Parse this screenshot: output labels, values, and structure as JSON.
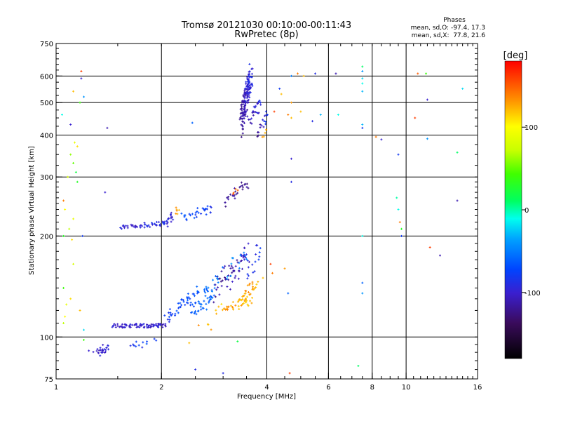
{
  "chart_data": {
    "type": "scatter",
    "title": "Tromsø 20121030 00:10:00-00:11:43",
    "subtitle": "RwPretec (8p)",
    "xlabel": "Frequency [MHz]",
    "ylabel": "Stationary phase Virtual Height [km]",
    "x_scale": "log",
    "y_scale": "log",
    "xlim": [
      1,
      16
    ],
    "ylim": [
      75,
      750
    ],
    "x_ticks": [
      1,
      2,
      4,
      6,
      8,
      10,
      16
    ],
    "x_tick_labels": [
      "1",
      "2",
      "4",
      "6",
      "8",
      "10",
      "16"
    ],
    "y_ticks": [
      75,
      100,
      200,
      300,
      400,
      500,
      600,
      750
    ],
    "y_tick_labels": [
      "75",
      "100",
      "200",
      "300",
      "400",
      "500",
      "600",
      "750"
    ],
    "grid": true,
    "annotation": {
      "heading": "Phases",
      "line1": "mean, sd,O: -97.4, 17.3",
      "line2": "mean, sd,X:  77.8, 21.6"
    },
    "colorbar": {
      "label": "[deg]",
      "range": [
        -180,
        180
      ],
      "ticks": [
        100,
        0,
        -100
      ],
      "tick_labels": [
        "100",
        "0",
        "-100"
      ]
    },
    "points": [
      [
        1.18,
        620,
        160
      ],
      [
        1.18,
        590,
        -100
      ],
      [
        1.2,
        520,
        -40
      ],
      [
        1.17,
        500,
        40
      ],
      [
        1.12,
        540,
        120
      ],
      [
        1.1,
        430,
        -100
      ],
      [
        1.04,
        460,
        -10
      ],
      [
        1.13,
        380,
        90
      ],
      [
        1.15,
        370,
        110
      ],
      [
        1.1,
        350,
        60
      ],
      [
        1.12,
        330,
        50
      ],
      [
        1.14,
        310,
        20
      ],
      [
        1.08,
        300,
        80
      ],
      [
        1.15,
        290,
        30
      ],
      [
        1.05,
        255,
        140
      ],
      [
        1.06,
        240,
        100
      ],
      [
        1.12,
        225,
        90
      ],
      [
        1.09,
        210,
        70
      ],
      [
        1.11,
        195,
        110
      ],
      [
        1.05,
        200,
        30
      ],
      [
        1.19,
        200,
        -80
      ],
      [
        1.05,
        140,
        40
      ],
      [
        1.1,
        130,
        110
      ],
      [
        1.07,
        125,
        90
      ],
      [
        1.06,
        115,
        100
      ],
      [
        1.17,
        120,
        120
      ],
      [
        1.05,
        110,
        70
      ],
      [
        1.12,
        165,
        80
      ],
      [
        1.2,
        98,
        40
      ],
      [
        1.2,
        105,
        -20
      ],
      [
        1.38,
        270,
        -100
      ],
      [
        1.4,
        420,
        -110
      ],
      [
        2.45,
        435,
        -60
      ],
      [
        1.24,
        91,
        -100
      ],
      [
        4.35,
        550,
        -80
      ],
      [
        4.7,
        600,
        -50
      ],
      [
        4.9,
        610,
        140
      ],
      [
        5.1,
        600,
        120
      ],
      [
        5.5,
        610,
        -90
      ],
      [
        6.3,
        610,
        -110
      ],
      [
        7.5,
        640,
        10
      ],
      [
        7.5,
        620,
        -40
      ],
      [
        7.5,
        590,
        -20
      ],
      [
        7.5,
        570,
        -10
      ],
      [
        7.5,
        540,
        -30
      ],
      [
        7.5,
        430,
        -30
      ],
      [
        7.5,
        420,
        -80
      ],
      [
        5.7,
        460,
        -30
      ],
      [
        6.4,
        460,
        -10
      ],
      [
        5.4,
        440,
        -90
      ],
      [
        5.0,
        470,
        120
      ],
      [
        4.6,
        460,
        140
      ],
      [
        4.7,
        450,
        120
      ],
      [
        4.2,
        470,
        160
      ],
      [
        4.4,
        530,
        120
      ],
      [
        4.7,
        500,
        130
      ],
      [
        4.7,
        340,
        -100
      ],
      [
        4.7,
        290,
        -90
      ],
      [
        7.5,
        200,
        -10
      ],
      [
        7.5,
        145,
        -60
      ],
      [
        7.5,
        135,
        -40
      ],
      [
        4.6,
        135,
        -60
      ],
      [
        4.15,
        155,
        140
      ],
      [
        4.5,
        160,
        130
      ],
      [
        7.3,
        82,
        10
      ],
      [
        4.65,
        78,
        160
      ],
      [
        2.5,
        80,
        -90
      ],
      [
        3.0,
        78,
        -90
      ],
      [
        2.4,
        96,
        120
      ],
      [
        3.3,
        97,
        20
      ],
      [
        8.2,
        395,
        140
      ],
      [
        8.5,
        388,
        -100
      ],
      [
        9.5,
        350,
        -80
      ],
      [
        9.4,
        260,
        0
      ],
      [
        9.5,
        240,
        -10
      ],
      [
        9.6,
        220,
        140
      ],
      [
        9.7,
        210,
        30
      ],
      [
        9.7,
        200,
        -80
      ],
      [
        10.8,
        610,
        150
      ],
      [
        11.4,
        610,
        40
      ],
      [
        11.5,
        510,
        -100
      ],
      [
        10.6,
        450,
        160
      ],
      [
        11.5,
        390,
        -40
      ],
      [
        14.0,
        355,
        10
      ],
      [
        14.0,
        255,
        -110
      ],
      [
        14.5,
        550,
        -20
      ],
      [
        11.7,
        185,
        160
      ],
      [
        12.5,
        175,
        -110
      ],
      [
        4.1,
        165,
        160
      ],
      [
        3.9,
        150,
        120
      ]
    ],
    "clusters": [
      {
        "f": [
          1.52,
          2.05
        ],
        "h": [
          210,
          220
        ],
        "n": 45,
        "jf": 0.02,
        "jh": 3,
        "ph": [
          -100,
          -90
        ]
      },
      {
        "f": [
          2.05,
          2.15
        ],
        "h": [
          215,
          232
        ],
        "n": 18,
        "jf": 0.03,
        "jh": 5,
        "ph": [
          -95,
          -100
        ]
      },
      {
        "f": [
          2.3,
          2.8
        ],
        "h": [
          225,
          245
        ],
        "n": 30,
        "jf": 0.05,
        "jh": 6,
        "ph": [
          -70,
          -80
        ]
      },
      {
        "f": [
          2.2,
          2.25
        ],
        "h": [
          235,
          245
        ],
        "n": 6,
        "jf": 0.03,
        "jh": 5,
        "ph": [
          130,
          130
        ]
      },
      {
        "f": [
          3.0,
          3.55
        ],
        "h": [
          250,
          295
        ],
        "n": 28,
        "jf": 0.05,
        "jh": 10,
        "ph": [
          -120,
          -120
        ]
      },
      {
        "f": [
          3.2,
          3.3
        ],
        "h": [
          265,
          275
        ],
        "n": 4,
        "jf": 0.02,
        "jh": 5,
        "ph": [
          150,
          150
        ]
      },
      {
        "f": [
          3.38,
          3.6
        ],
        "h": [
          400,
          640
        ],
        "n": 160,
        "jf": 0.05,
        "jh": 20,
        "ph": [
          -120,
          -90
        ]
      },
      {
        "f": [
          3.55,
          3.85
        ],
        "h": [
          430,
          520
        ],
        "n": 25,
        "jf": 0.06,
        "jh": 15,
        "ph": [
          -110,
          -90
        ]
      },
      {
        "f": [
          3.75,
          4.0
        ],
        "h": [
          400,
          470
        ],
        "n": 16,
        "jf": 0.05,
        "jh": 20,
        "ph": [
          -120,
          -80
        ]
      },
      {
        "f": [
          3.9,
          4.0
        ],
        "h": [
          390,
          420
        ],
        "n": 5,
        "jf": 0.02,
        "jh": 5,
        "ph": [
          130,
          130
        ]
      },
      {
        "f": [
          1.3,
          1.4
        ],
        "h": [
          88,
          94
        ],
        "n": 25,
        "jf": 0.04,
        "jh": 2,
        "ph": [
          -100,
          -100
        ]
      },
      {
        "f": [
          1.6,
          1.9
        ],
        "h": [
          93,
          98
        ],
        "n": 12,
        "jf": 0.06,
        "jh": 2,
        "ph": [
          -90,
          -70
        ]
      },
      {
        "f": [
          1.45,
          2.05
        ],
        "h": [
          108,
          108
        ],
        "n": 80,
        "jf": 0.02,
        "jh": 1.5,
        "ph": [
          -100,
          -100
        ]
      },
      {
        "f": [
          2.05,
          2.45
        ],
        "h": [
          110,
          135
        ],
        "n": 35,
        "jf": 0.04,
        "jh": 3,
        "ph": [
          -80,
          -70
        ]
      },
      {
        "f": [
          2.45,
          2.8
        ],
        "h": [
          115,
          135
        ],
        "n": 30,
        "jf": 0.05,
        "jh": 3,
        "ph": [
          -60,
          -60
        ]
      },
      {
        "f": [
          2.4,
          2.9
        ],
        "h": [
          125,
          150
        ],
        "n": 30,
        "jf": 0.05,
        "jh": 6,
        "ph": [
          -70,
          -55
        ]
      },
      {
        "f": [
          2.85,
          3.55
        ],
        "h": [
          130,
          185
        ],
        "n": 60,
        "jf": 0.06,
        "jh": 8,
        "ph": [
          -120,
          -100
        ]
      },
      {
        "f": [
          3.0,
          3.6
        ],
        "h": [
          118,
          130
        ],
        "n": 40,
        "jf": 0.05,
        "jh": 4,
        "ph": [
          130,
          120
        ]
      },
      {
        "f": [
          3.4,
          3.75
        ],
        "h": [
          130,
          145
        ],
        "n": 25,
        "jf": 0.05,
        "jh": 5,
        "ph": [
          130,
          125
        ]
      },
      {
        "f": [
          3.5,
          3.85
        ],
        "h": [
          140,
          195
        ],
        "n": 15,
        "jf": 0.05,
        "jh": 10,
        "ph": [
          -90,
          -80
        ]
      },
      {
        "f": [
          2.9,
          3.5
        ],
        "h": [
          150,
          175
        ],
        "n": 15,
        "jf": 0.06,
        "jh": 8,
        "ph": [
          -50,
          -40
        ]
      },
      {
        "f": [
          2.6,
          3.0
        ],
        "h": [
          100,
          125
        ],
        "n": 8,
        "jf": 0.06,
        "jh": 6,
        "ph": [
          130,
          110
        ]
      }
    ]
  }
}
